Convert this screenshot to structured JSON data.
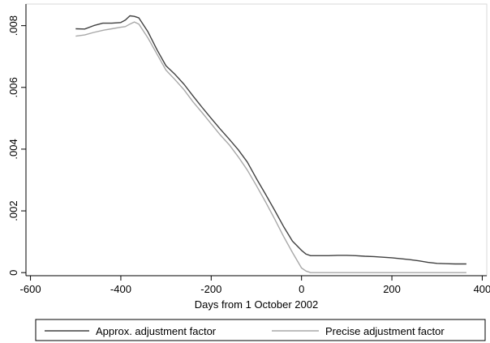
{
  "chart_data": {
    "type": "line",
    "xlabel": "Days from 1 October 2002",
    "ylabel": "",
    "xlim": [
      -610,
      410
    ],
    "ylim": [
      -0.0001,
      0.0087
    ],
    "xticks": [
      -600,
      -400,
      -200,
      0,
      200,
      400
    ],
    "xtick_labels": [
      "-600",
      "-400",
      "-200",
      "0",
      "200",
      "400"
    ],
    "yticks": [
      0,
      0.002,
      0.004,
      0.006,
      0.008
    ],
    "ytick_labels": [
      "0",
      ".002",
      ".004",
      ".006",
      ".008"
    ],
    "grid": false,
    "legend_position": "bottom",
    "series": [
      {
        "name": "Approx. adjustment factor",
        "color": "#404040",
        "x": [
          -500,
          -480,
          -460,
          -440,
          -420,
          -400,
          -390,
          -380,
          -370,
          -360,
          -340,
          -320,
          -300,
          -280,
          -260,
          -240,
          -220,
          -200,
          -180,
          -160,
          -140,
          -120,
          -100,
          -80,
          -60,
          -40,
          -20,
          0,
          10,
          20,
          40,
          60,
          80,
          100,
          120,
          140,
          160,
          180,
          200,
          220,
          240,
          260,
          280,
          300,
          320,
          340,
          365
        ],
        "y": [
          0.0079,
          0.00789,
          0.008,
          0.00808,
          0.00808,
          0.0081,
          0.00818,
          0.00832,
          0.0083,
          0.00825,
          0.0078,
          0.00722,
          0.0067,
          0.00642,
          0.0061,
          0.00572,
          0.00535,
          0.005,
          0.00465,
          0.00432,
          0.00398,
          0.00358,
          0.00305,
          0.00255,
          0.00203,
          0.0015,
          0.00102,
          0.00072,
          0.0006,
          0.00055,
          0.00055,
          0.00055,
          0.00056,
          0.00056,
          0.00055,
          0.00053,
          0.00052,
          0.0005,
          0.00048,
          0.00045,
          0.00042,
          0.00038,
          0.00033,
          0.0003,
          0.00029,
          0.00028,
          0.00028
        ]
      },
      {
        "name": "Precise adjustment factor",
        "color": "#a8a8a8",
        "x": [
          -500,
          -480,
          -460,
          -440,
          -420,
          -400,
          -390,
          -380,
          -370,
          -360,
          -340,
          -320,
          -300,
          -280,
          -260,
          -240,
          -220,
          -200,
          -180,
          -160,
          -140,
          -120,
          -100,
          -80,
          -60,
          -40,
          -20,
          0,
          10,
          20,
          40,
          60,
          80,
          100,
          120,
          140,
          160,
          180,
          200,
          220,
          240,
          260,
          280,
          300,
          320,
          340,
          365
        ],
        "y": [
          0.00766,
          0.0077,
          0.00778,
          0.00785,
          0.0079,
          0.00795,
          0.00797,
          0.00805,
          0.00812,
          0.00805,
          0.0076,
          0.00708,
          0.00656,
          0.00625,
          0.00592,
          0.00553,
          0.00518,
          0.00482,
          0.00446,
          0.00414,
          0.00375,
          0.00332,
          0.00282,
          0.0023,
          0.00175,
          0.00118,
          0.00065,
          0.00015,
          5e-05,
          0,
          0,
          0,
          0,
          0,
          0,
          0,
          0,
          0,
          0,
          0,
          0,
          0,
          0,
          0,
          0,
          0,
          0
        ]
      }
    ]
  }
}
